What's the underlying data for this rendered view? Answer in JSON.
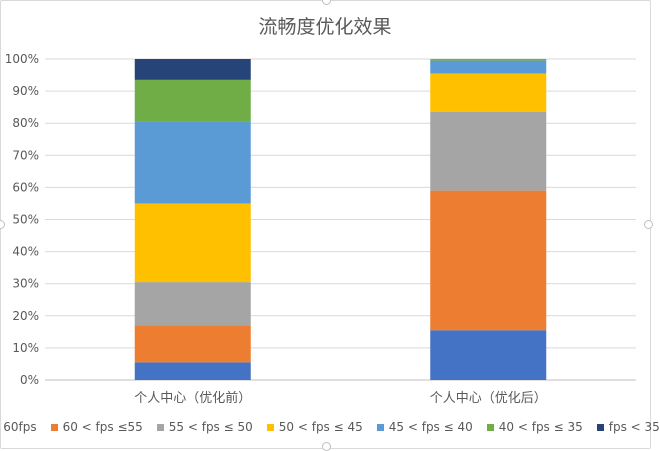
{
  "chart_data": {
    "type": "bar",
    "stacked": true,
    "percent": true,
    "title": "流畅度优化效果",
    "categories": [
      "个人中心（优化前）",
      "个人中心（优化后）"
    ],
    "y_ticks": [
      "0%",
      "10%",
      "20%",
      "30%",
      "40%",
      "50%",
      "60%",
      "70%",
      "80%",
      "90%",
      "100%"
    ],
    "ylim": [
      0,
      100
    ],
    "grid": true,
    "legend_position": "bottom",
    "series": [
      {
        "name": "60fps",
        "color": "#4472c4",
        "values": [
          5.5,
          15.5
        ]
      },
      {
        "name": "60 < fps ≤55",
        "color": "#ed7d31",
        "values": [
          11.5,
          43.5
        ]
      },
      {
        "name": "55 < fps ≤ 50",
        "color": "#a5a5a5",
        "values": [
          13.5,
          24.5
        ]
      },
      {
        "name": "50 < fps ≤ 45",
        "color": "#ffc000",
        "values": [
          24.5,
          12
        ]
      },
      {
        "name": "45 < fps ≤ 40",
        "color": "#5b9bd5",
        "values": [
          25.5,
          4
        ]
      },
      {
        "name": "40 < fps ≤ 35",
        "color": "#70ad47",
        "values": [
          13,
          0.5
        ]
      },
      {
        "name": "fps < 35",
        "color": "#264478",
        "values": [
          6.5,
          0
        ]
      }
    ]
  }
}
